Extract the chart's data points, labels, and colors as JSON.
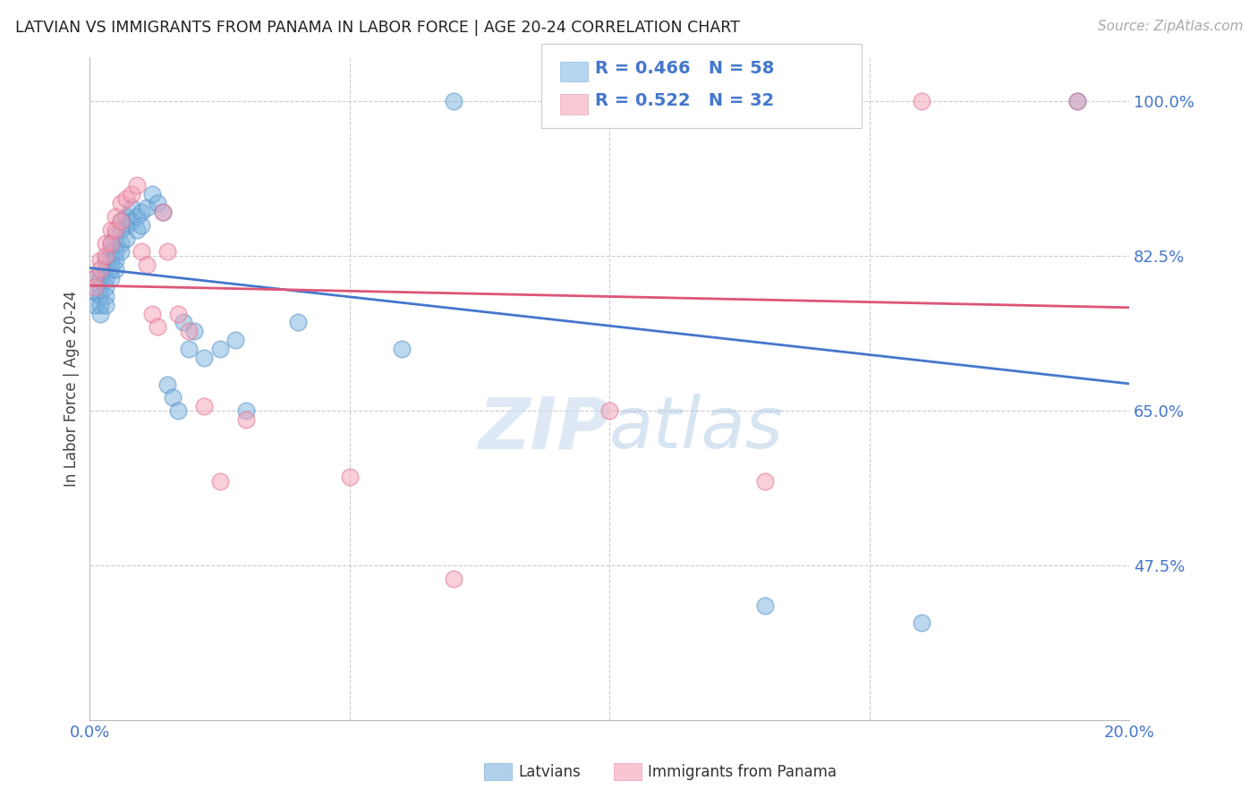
{
  "title": "LATVIAN VS IMMIGRANTS FROM PANAMA IN LABOR FORCE | AGE 20-24 CORRELATION CHART",
  "source": "Source: ZipAtlas.com",
  "ylabel": "In Labor Force | Age 20-24",
  "xlim": [
    0.0,
    0.2
  ],
  "ylim": [
    0.3,
    1.05
  ],
  "yticks": [
    0.475,
    0.65,
    0.825,
    1.0
  ],
  "ytick_labels": [
    "47.5%",
    "65.0%",
    "82.5%",
    "100.0%"
  ],
  "xticks": [
    0.0,
    0.05,
    0.1,
    0.15,
    0.2
  ],
  "xtick_labels": [
    "0.0%",
    "",
    "",
    "",
    "20.0%"
  ],
  "blue_color": "#7ab3e0",
  "pink_color": "#f4a0b5",
  "blue_edge_color": "#5590c8",
  "pink_edge_color": "#e07090",
  "blue_line_color": "#4477cc",
  "pink_line_color": "#dd5577",
  "legend_text_color": "#4477cc",
  "R_blue": 0.466,
  "N_blue": 58,
  "R_pink": 0.522,
  "N_pink": 32,
  "blue_x": [
    0.001,
    0.001,
    0.001,
    0.002,
    0.002,
    0.002,
    0.002,
    0.002,
    0.003,
    0.003,
    0.003,
    0.003,
    0.003,
    0.003,
    0.004,
    0.004,
    0.004,
    0.004,
    0.004,
    0.005,
    0.005,
    0.005,
    0.005,
    0.005,
    0.006,
    0.006,
    0.006,
    0.006,
    0.007,
    0.007,
    0.007,
    0.008,
    0.008,
    0.009,
    0.009,
    0.01,
    0.01,
    0.011,
    0.012,
    0.013,
    0.014,
    0.015,
    0.016,
    0.017,
    0.018,
    0.019,
    0.02,
    0.022,
    0.025,
    0.028,
    0.03,
    0.04,
    0.06,
    0.07,
    0.1,
    0.13,
    0.16,
    0.19
  ],
  "blue_y": [
    0.77,
    0.785,
    0.8,
    0.8,
    0.79,
    0.78,
    0.77,
    0.76,
    0.82,
    0.81,
    0.8,
    0.79,
    0.78,
    0.77,
    0.84,
    0.83,
    0.82,
    0.81,
    0.8,
    0.85,
    0.84,
    0.83,
    0.82,
    0.81,
    0.865,
    0.855,
    0.84,
    0.83,
    0.87,
    0.86,
    0.845,
    0.88,
    0.865,
    0.87,
    0.855,
    0.875,
    0.86,
    0.88,
    0.895,
    0.885,
    0.875,
    0.68,
    0.665,
    0.65,
    0.75,
    0.72,
    0.74,
    0.71,
    0.72,
    0.73,
    0.65,
    0.75,
    0.72,
    1.0,
    1.0,
    0.43,
    0.41,
    1.0
  ],
  "pink_x": [
    0.001,
    0.001,
    0.002,
    0.002,
    0.003,
    0.003,
    0.004,
    0.004,
    0.005,
    0.005,
    0.006,
    0.006,
    0.007,
    0.008,
    0.009,
    0.01,
    0.011,
    0.012,
    0.013,
    0.014,
    0.015,
    0.017,
    0.019,
    0.022,
    0.025,
    0.03,
    0.05,
    0.07,
    0.1,
    0.13,
    0.16,
    0.19
  ],
  "pink_y": [
    0.8,
    0.79,
    0.82,
    0.81,
    0.84,
    0.825,
    0.855,
    0.84,
    0.87,
    0.855,
    0.885,
    0.865,
    0.89,
    0.895,
    0.905,
    0.83,
    0.815,
    0.76,
    0.745,
    0.875,
    0.83,
    0.76,
    0.74,
    0.655,
    0.57,
    0.64,
    0.575,
    0.46,
    0.65,
    0.57,
    1.0,
    1.0
  ],
  "watermark": "ZIPatlas",
  "background_color": "#ffffff",
  "grid_color": "#cccccc"
}
